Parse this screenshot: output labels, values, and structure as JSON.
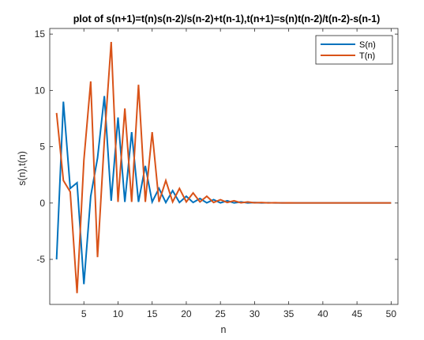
{
  "chart_data": {
    "type": "line",
    "title": "plot of s(n+1)=t(n)s(n-2)/s(n-2)+t(n-1),t(n+1)=s(n)t(n-2)/t(n-2)-s(n-1)",
    "xlabel": "n",
    "ylabel": "s(n),t(n)",
    "xlim": [
      0,
      51
    ],
    "ylim": [
      -9,
      15.5
    ],
    "xticks": [
      5,
      10,
      15,
      20,
      25,
      30,
      35,
      40,
      45,
      50
    ],
    "yticks": [
      -5,
      0,
      5,
      10,
      15
    ],
    "grid": false,
    "legend_position": "top-right",
    "x": [
      1,
      2,
      3,
      4,
      5,
      6,
      7,
      8,
      9,
      10,
      11,
      12,
      13,
      14,
      15,
      16,
      17,
      18,
      19,
      20,
      21,
      22,
      23,
      24,
      25,
      26,
      27,
      28,
      29,
      30,
      31,
      32,
      33,
      34,
      35,
      36,
      37,
      38,
      39,
      40,
      41,
      42,
      43,
      44,
      45,
      46,
      47,
      48,
      49,
      50
    ],
    "series": [
      {
        "name": "S(n)",
        "color": "#0072BD",
        "values": [
          -5,
          9,
          1.3,
          1.8,
          -7.2,
          0.6,
          4,
          9.5,
          0.2,
          7.6,
          0.1,
          6.3,
          0.1,
          3.3,
          0.1,
          1.3,
          0.05,
          1.1,
          0.05,
          0.6,
          0.05,
          0.4,
          0.02,
          0.3,
          0.02,
          0.2,
          0.01,
          0.1,
          0.01,
          0.05,
          0.01,
          0.03,
          0.01,
          0.02,
          0.01,
          0.01,
          0.01,
          0.01,
          0.01,
          0.01,
          0.01,
          0.01,
          0.01,
          0.01,
          0.01,
          0.01,
          0.01,
          0.01,
          0.01,
          0.01
        ]
      },
      {
        "name": "T(n)",
        "color": "#D95319",
        "values": [
          8,
          2,
          1,
          -8,
          3.8,
          10.8,
          -4.8,
          5.6,
          14.3,
          0.1,
          8.4,
          0.1,
          10.5,
          0.1,
          6.3,
          0.1,
          2,
          0.1,
          1.3,
          0.1,
          0.9,
          0.1,
          0.6,
          0.05,
          0.3,
          0.05,
          0.2,
          0.02,
          0.1,
          0.02,
          0.05,
          0.01,
          0.03,
          0.01,
          0.02,
          0.01,
          0.01,
          0.01,
          0.01,
          0.01,
          0.01,
          0.01,
          0.01,
          0.01,
          0.01,
          0.01,
          0.01,
          0.01,
          0.01,
          0.01
        ]
      }
    ]
  }
}
